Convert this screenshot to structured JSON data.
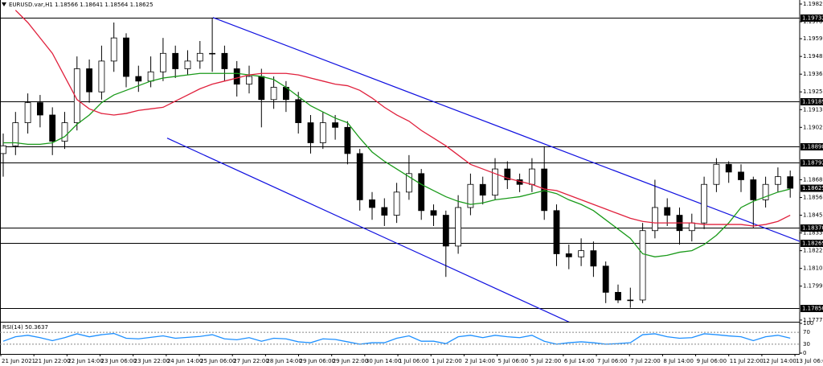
{
  "chart_data": {
    "type": "candlestick",
    "title": "EURUSD.var,H1  1.18566 1.18641 1.18564 1.18625",
    "ylim": [
      1.17759,
      1.19846
    ],
    "yticks": [
      {
        "value": 1.1982,
        "label": "1.19820"
      },
      {
        "value": 1.19705,
        "label": "1.19705"
      },
      {
        "value": 1.19595,
        "label": "1.19595"
      },
      {
        "value": 1.1948,
        "label": "1.19480"
      },
      {
        "value": 1.19365,
        "label": "1.19365"
      },
      {
        "value": 1.1925,
        "label": "1.19250"
      },
      {
        "value": 1.19135,
        "label": "1.19135"
      },
      {
        "value": 1.1902,
        "label": "1.19020"
      },
      {
        "value": 1.1868,
        "label": "1.18680"
      },
      {
        "value": 1.18565,
        "label": "1.18565"
      },
      {
        "value": 1.1845,
        "label": "1.18450"
      },
      {
        "value": 1.18335,
        "label": "1.18335"
      },
      {
        "value": 1.1822,
        "label": "1.18220"
      },
      {
        "value": 1.18105,
        "label": "1.18105"
      },
      {
        "value": 1.1799,
        "label": "1.17990"
      },
      {
        "value": 1.1777,
        "label": "1.17770"
      }
    ],
    "levels": [
      {
        "value": 1.19732,
        "label": "1.19732"
      },
      {
        "value": 1.19189,
        "label": "1.19189"
      },
      {
        "value": 1.18898,
        "label": "1.18898"
      },
      {
        "value": 1.18792,
        "label": "1.18792"
      },
      {
        "value": 1.1837,
        "label": "1.18370"
      },
      {
        "value": 1.18269,
        "label": "1.18269"
      },
      {
        "value": 1.1785,
        "label": "1.17850"
      }
    ],
    "price_label": {
      "value": 1.18625,
      "label": "1.18625"
    },
    "time_labels": [
      "21 Jun 2021",
      "21 Jun 22:00",
      "22 Jun 14:00",
      "23 Jun 06:00",
      "23 Jun 22:00",
      "24 Jun 14:00",
      "25 Jun 06:00",
      "27 Jun 22:00",
      "28 Jun 14:00",
      "29 Jun 06:00",
      "29 Jun 22:00",
      "30 Jun 14:00",
      "1 Jul 06:00",
      "1 Jul 22:00",
      "2 Jul 14:00",
      "5 Jul 06:00",
      "5 Jul 22:00",
      "6 Jul 14:00",
      "7 Jul 06:00",
      "7 Jul 22:00",
      "8 Jul 14:00",
      "9 Jul 06:00",
      "11 Jul 22:00",
      "12 Jul 14:00",
      "13 Jul 06:00"
    ],
    "candles": {
      "open": [
        1.1885,
        1.189,
        1.1905,
        1.1918,
        1.191,
        1.1893,
        1.1905,
        1.194,
        1.1925,
        1.1945,
        1.196,
        1.1935,
        1.1932,
        1.1938,
        1.195,
        1.194,
        1.1945,
        1.195,
        1.195,
        1.194,
        1.193,
        1.1935,
        1.192,
        1.1928,
        1.192,
        1.1905,
        1.1892,
        1.1905,
        1.1902,
        1.1885,
        1.1855,
        1.185,
        1.1845,
        1.186,
        1.1872,
        1.1848,
        1.1845,
        1.1825,
        1.185,
        1.1865,
        1.1858,
        1.1875,
        1.1868,
        1.1865,
        1.1875,
        1.1848,
        1.182,
        1.1818,
        1.1822,
        1.1812,
        1.1795,
        1.179,
        1.179,
        1.1835,
        1.185,
        1.1845,
        1.1835,
        1.184,
        1.1865,
        1.1878,
        1.1873,
        1.1868,
        1.1855,
        1.1865,
        1.187
      ],
      "high": [
        1.1898,
        1.1912,
        1.1924,
        1.1923,
        1.1915,
        1.1912,
        1.1948,
        1.1946,
        1.1955,
        1.197,
        1.1963,
        1.1942,
        1.1948,
        1.196,
        1.1955,
        1.1952,
        1.1958,
        1.19732,
        1.1955,
        1.1945,
        1.1942,
        1.194,
        1.1935,
        1.1932,
        1.1925,
        1.191,
        1.1912,
        1.191,
        1.1906,
        1.1888,
        1.186,
        1.1856,
        1.1866,
        1.1884,
        1.1875,
        1.1852,
        1.1848,
        1.1858,
        1.1872,
        1.187,
        1.1882,
        1.188,
        1.1872,
        1.1882,
        1.18898,
        1.1852,
        1.1826,
        1.183,
        1.1828,
        1.1815,
        1.18,
        1.1798,
        1.184,
        1.1868,
        1.1856,
        1.185,
        1.1846,
        1.187,
        1.1882,
        1.188,
        1.1878,
        1.187,
        1.187,
        1.1876,
        1.1874
      ],
      "low": [
        1.187,
        1.1884,
        1.1898,
        1.1902,
        1.1884,
        1.1888,
        1.19,
        1.1918,
        1.192,
        1.1938,
        1.1928,
        1.1925,
        1.1928,
        1.1932,
        1.1934,
        1.1936,
        1.194,
        1.1938,
        1.1932,
        1.1922,
        1.1924,
        1.1902,
        1.1914,
        1.1912,
        1.1898,
        1.1885,
        1.1888,
        1.1894,
        1.1878,
        1.1848,
        1.1842,
        1.1838,
        1.184,
        1.1855,
        1.1842,
        1.1838,
        1.1805,
        1.182,
        1.1845,
        1.1852,
        1.1855,
        1.1862,
        1.186,
        1.186,
        1.1842,
        1.1812,
        1.181,
        1.1812,
        1.1805,
        1.1788,
        1.1788,
        1.1785,
        1.1788,
        1.183,
        1.1838,
        1.1826,
        1.1828,
        1.1836,
        1.186,
        1.1866,
        1.186,
        1.1837,
        1.185,
        1.186,
        1.18564
      ],
      "close": [
        1.189,
        1.1905,
        1.1918,
        1.191,
        1.1893,
        1.1905,
        1.194,
        1.1925,
        1.1945,
        1.196,
        1.1935,
        1.1932,
        1.1938,
        1.195,
        1.194,
        1.1945,
        1.195,
        1.195,
        1.194,
        1.193,
        1.1935,
        1.192,
        1.1928,
        1.192,
        1.1905,
        1.1892,
        1.1905,
        1.1902,
        1.1885,
        1.1855,
        1.185,
        1.1845,
        1.186,
        1.1872,
        1.1848,
        1.1845,
        1.1825,
        1.185,
        1.1865,
        1.1858,
        1.1875,
        1.1868,
        1.1865,
        1.1875,
        1.1848,
        1.182,
        1.1818,
        1.1822,
        1.1812,
        1.1795,
        1.179,
        1.179,
        1.1835,
        1.185,
        1.1845,
        1.1835,
        1.184,
        1.1865,
        1.1878,
        1.1873,
        1.1868,
        1.1855,
        1.1865,
        1.187,
        1.18625
      ]
    },
    "moving_averages": [
      {
        "color": "#1a9a1a",
        "values": [
          1.1892,
          1.1892,
          1.1891,
          1.1891,
          1.1892,
          1.1896,
          1.1904,
          1.191,
          1.1918,
          1.1923,
          1.1926,
          1.1929,
          1.1932,
          1.1934,
          1.1935,
          1.1936,
          1.1937,
          1.1937,
          1.1937,
          1.1937,
          1.1936,
          1.1935,
          1.1933,
          1.1928,
          1.1922,
          1.1916,
          1.1912,
          1.1908,
          1.1905,
          1.1895,
          1.1886,
          1.188,
          1.1875,
          1.187,
          1.1865,
          1.1861,
          1.1857,
          1.1854,
          1.1852,
          1.1853,
          1.1855,
          1.1856,
          1.1857,
          1.1859,
          1.1861,
          1.1859,
          1.1855,
          1.1852,
          1.1848,
          1.1842,
          1.1836,
          1.183,
          1.182,
          1.1818,
          1.1819,
          1.1821,
          1.1822,
          1.1826,
          1.1832,
          1.184,
          1.185,
          1.1854,
          1.1857,
          1.186,
          1.1862
        ]
      },
      {
        "color": "#e0203c",
        "values": [
          null,
          1.1978,
          1.197,
          1.196,
          1.195,
          1.1935,
          1.192,
          1.1914,
          1.1911,
          1.191,
          1.1911,
          1.1913,
          1.1914,
          1.1915,
          1.1919,
          1.1923,
          1.1927,
          1.193,
          1.1932,
          1.1934,
          1.1936,
          1.1937,
          1.1937,
          1.1937,
          1.1936,
          1.1934,
          1.1932,
          1.193,
          1.1929,
          1.1926,
          1.1921,
          1.1915,
          1.191,
          1.1906,
          1.19,
          1.1895,
          1.189,
          1.1884,
          1.1878,
          1.1875,
          1.1872,
          1.1869,
          1.1867,
          1.1865,
          1.1862,
          1.1861,
          1.1858,
          1.1855,
          1.1852,
          1.1849,
          1.1846,
          1.1843,
          1.1841,
          1.184,
          1.184,
          1.184,
          1.184,
          1.1839,
          1.1839,
          1.1839,
          1.1839,
          1.1838,
          1.1839,
          1.1841,
          1.1845
        ]
      }
    ],
    "trendlines": [
      {
        "color": "#1010e0",
        "x": [
          17.06,
          64.8
        ],
        "y": [
          1.19732,
          1.1828
        ]
      },
      {
        "color": "#1010e0",
        "x": [
          13.33,
          49.5
        ],
        "y": [
          1.1895,
          1.1763
        ]
      }
    ],
    "rsi": {
      "title": "RSI(14) 50.3637",
      "color": "#1e90ff",
      "ylim": [
        0,
        100
      ],
      "yticks": [
        100,
        70,
        30,
        0
      ],
      "values": [
        40,
        55,
        60,
        52,
        42,
        52,
        65,
        55,
        62,
        66,
        50,
        48,
        53,
        58,
        50,
        53,
        56,
        62,
        48,
        45,
        52,
        40,
        50,
        48,
        38,
        35,
        48,
        46,
        38,
        30,
        35,
        35,
        50,
        58,
        40,
        40,
        32,
        55,
        60,
        52,
        60,
        55,
        52,
        60,
        40,
        30,
        35,
        38,
        35,
        30,
        32,
        35,
        62,
        65,
        55,
        50,
        52,
        65,
        62,
        58,
        55,
        42,
        55,
        60,
        50.36
      ]
    }
  }
}
